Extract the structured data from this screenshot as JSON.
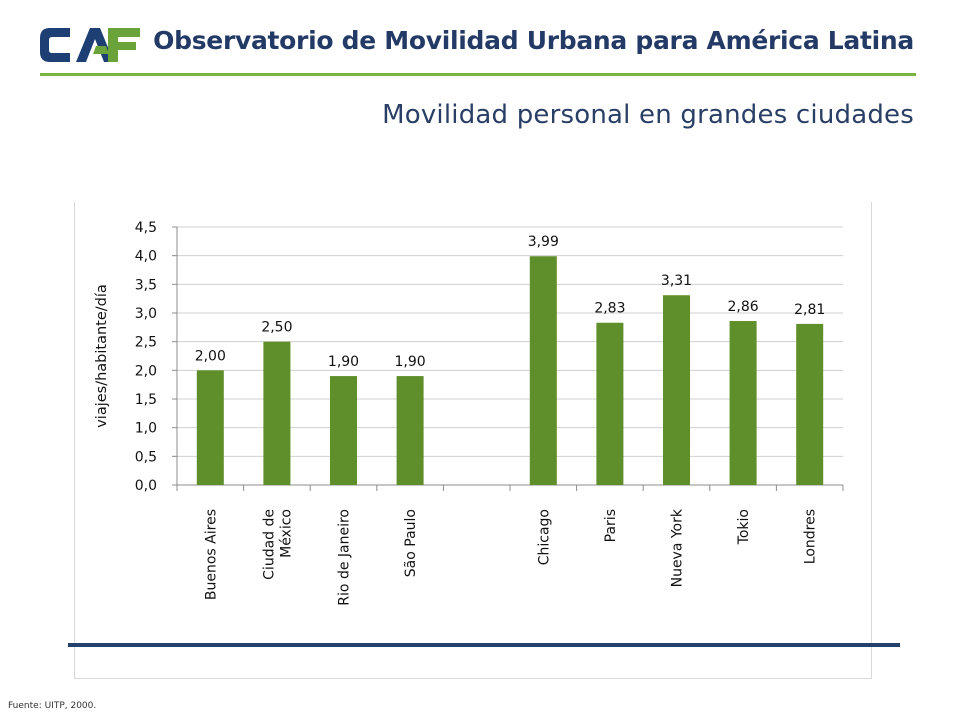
{
  "header": {
    "logo_text": "CAF",
    "title": "Observatorio de Movilidad Urbana para América Latina"
  },
  "subtitle": "Movilidad personal en grandes ciudades",
  "source": "Fuente: UITP, 2000.",
  "colors": {
    "bar": "#5f8f2a",
    "header_rule": "#7cb342",
    "bottom_rule": "#25406b",
    "title": "#233a66",
    "logo_blue": "#1e3f73",
    "logo_green": "#6aa339"
  },
  "chart_data": {
    "type": "bar",
    "ylabel": "viajes/habitante/día",
    "ylim": [
      0,
      4.5
    ],
    "yticks": [
      "0,0",
      "0,5",
      "1,0",
      "1,5",
      "2,0",
      "2,5",
      "3,0",
      "3,5",
      "4,0",
      "4,5"
    ],
    "grid": true,
    "categories": [
      [
        "Buenos Aires"
      ],
      [
        "Ciudad de",
        "México"
      ],
      [
        "Rio de Janeiro"
      ],
      [
        "São Paulo"
      ],
      [
        ""
      ],
      [
        "Chicago"
      ],
      [
        "Paris"
      ],
      [
        "Nueva York"
      ],
      [
        "Tokio"
      ],
      [
        "Londres"
      ]
    ],
    "values": [
      2.0,
      2.5,
      1.9,
      1.9,
      null,
      3.99,
      2.83,
      3.31,
      2.86,
      2.81
    ],
    "value_labels": [
      "2,00",
      "2,50",
      "1,90",
      "1,90",
      "",
      "3,99",
      "2,83",
      "3,31",
      "2,86",
      "2,81"
    ]
  }
}
